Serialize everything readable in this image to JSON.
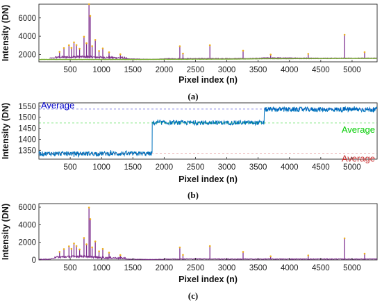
{
  "chart_data": [
    {
      "type": "line",
      "caption": "(a)",
      "xlabel": "Pixel index (n)",
      "ylabel": "Intensity (DN)",
      "xlim": [
        0,
        5400
      ],
      "ylim": [
        1200,
        7500
      ],
      "xticks": [
        500,
        1000,
        1500,
        2000,
        2500,
        3000,
        3500,
        4000,
        4500,
        5000
      ],
      "yticks": [
        2000,
        4000,
        6000
      ],
      "grid": false,
      "series": [
        {
          "color": "#7e2f8e",
          "baseline": [
            [
              170,
              1570
            ],
            [
              700,
              1650
            ],
            [
              1000,
              1570
            ],
            [
              1500,
              1500
            ],
            [
              1800,
              1460
            ],
            [
              2000,
              1500
            ],
            [
              2600,
              1520
            ],
            [
              3000,
              1510
            ],
            [
              3500,
              1530
            ],
            [
              3600,
              1600
            ],
            [
              4500,
              1560
            ],
            [
              5000,
              1560
            ],
            [
              5400,
              1560
            ]
          ],
          "peaks": [
            [
              330,
              700
            ],
            [
              400,
              1100
            ],
            [
              480,
              1400
            ],
            [
              520,
              1100
            ],
            [
              560,
              1700
            ],
            [
              600,
              1400
            ],
            [
              650,
              1000
            ],
            [
              720,
              2300
            ],
            [
              760,
              1600
            ],
            [
              800,
              6000
            ],
            [
              820,
              4600
            ],
            [
              850,
              1300
            ],
            [
              900,
              2000
            ],
            [
              960,
              800
            ],
            [
              1020,
              1100
            ],
            [
              1120,
              700
            ],
            [
              1300,
              500
            ],
            [
              2250,
              1400
            ],
            [
              2300,
              600
            ],
            [
              2730,
              1500
            ],
            [
              3260,
              900
            ],
            [
              3700,
              400
            ],
            [
              4300,
              500
            ],
            [
              4880,
              2600
            ],
            [
              5200,
              700
            ]
          ]
        },
        {
          "color": "#77ac30",
          "baseline": [
            [
              0,
              1460
            ],
            [
              1500,
              1460
            ],
            [
              2000,
              1480
            ],
            [
              3000,
              1500
            ],
            [
              3600,
              1540
            ],
            [
              4500,
              1560
            ],
            [
              5400,
              1580
            ]
          ],
          "peaks": []
        }
      ]
    },
    {
      "type": "line",
      "caption": "(b)",
      "xlabel": "Pixel index (n)",
      "ylabel": "Intensity (DN)",
      "xlim": [
        0,
        5400
      ],
      "ylim": [
        1310,
        1565
      ],
      "xticks": [
        500,
        1000,
        1500,
        2000,
        2500,
        3000,
        3500,
        4000,
        4500,
        5000
      ],
      "yticks": [
        1350,
        1400,
        1450,
        1500,
        1550
      ],
      "grid": false,
      "series": [
        {
          "color": "#0072bd",
          "segments": [
            {
              "x": [
                0,
                1810
              ],
              "mean": 1335,
              "noise": 10
            },
            {
              "x": [
                1810,
                3600
              ],
              "mean": 1475,
              "noise": 10
            },
            {
              "x": [
                3600,
                5400
              ],
              "mean": 1535,
              "noise": 11
            }
          ]
        }
      ],
      "annotations": [
        {
          "text": "Average",
          "color": "#0000c8",
          "level": 1537
        },
        {
          "text": "Average",
          "color": "#00cc00",
          "level": 1474
        },
        {
          "text": "Average",
          "color": "#c83232",
          "level": 1336
        }
      ]
    },
    {
      "type": "line",
      "caption": "(c)",
      "xlabel": "Pixel index (n)",
      "ylabel": "Intensity (DN)",
      "xlim": [
        0,
        5400
      ],
      "ylim": [
        0,
        6400
      ],
      "xticks": [
        500,
        1000,
        1500,
        2000,
        2500,
        3000,
        3500,
        4000,
        4500,
        5000
      ],
      "yticks": [
        0,
        2000,
        4000,
        6000
      ],
      "grid": false,
      "series": [
        {
          "color": "#7e2f8e",
          "baseline": [
            [
              0,
              20
            ],
            [
              170,
              40
            ],
            [
              250,
              200
            ],
            [
              700,
              300
            ],
            [
              1000,
              150
            ],
            [
              1500,
              60
            ],
            [
              1800,
              30
            ],
            [
              2000,
              60
            ],
            [
              2600,
              80
            ],
            [
              3000,
              60
            ],
            [
              3600,
              60
            ],
            [
              4500,
              60
            ],
            [
              5400,
              60
            ]
          ],
          "peaks": [
            [
              330,
              700
            ],
            [
              400,
              1000
            ],
            [
              480,
              1300
            ],
            [
              520,
              1000
            ],
            [
              560,
              1600
            ],
            [
              600,
              1300
            ],
            [
              650,
              900
            ],
            [
              720,
              2200
            ],
            [
              760,
              1500
            ],
            [
              800,
              5700
            ],
            [
              820,
              4400
            ],
            [
              850,
              1200
            ],
            [
              900,
              1900
            ],
            [
              960,
              800
            ],
            [
              1020,
              1100
            ],
            [
              1120,
              700
            ],
            [
              1300,
              450
            ],
            [
              2250,
              1350
            ],
            [
              2300,
              500
            ],
            [
              2730,
              1500
            ],
            [
              3260,
              850
            ],
            [
              3700,
              350
            ],
            [
              4300,
              450
            ],
            [
              4880,
              2400
            ],
            [
              5200,
              650
            ]
          ]
        }
      ]
    }
  ]
}
